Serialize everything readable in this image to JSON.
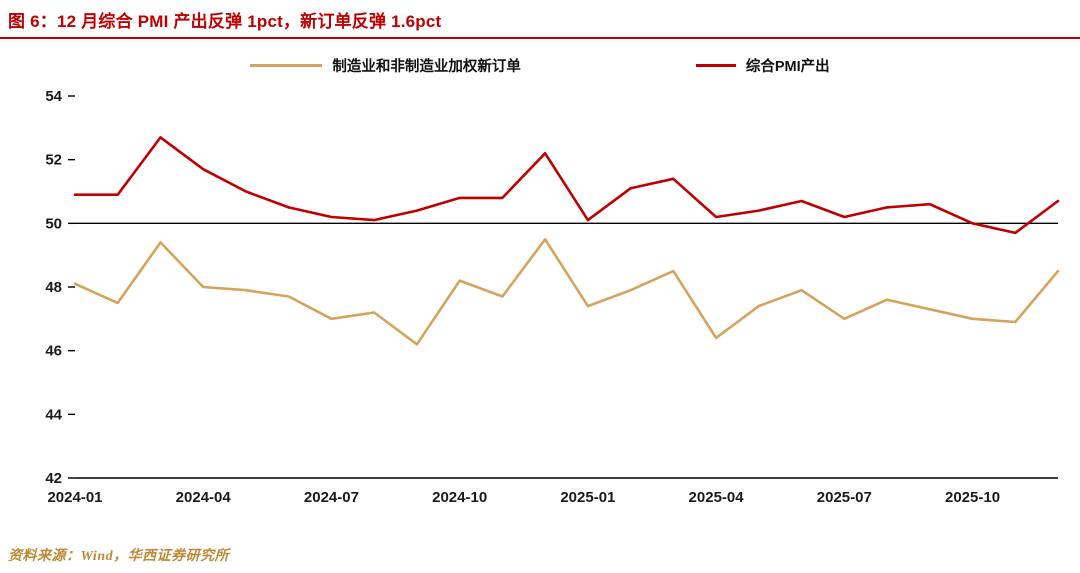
{
  "header": {
    "title": "图 6：12 月综合 PMI 产出反弹 1pct，新订单反弹 1.6pct"
  },
  "legend": {
    "items": [
      {
        "label": "制造业和非制造业加权新订单"
      },
      {
        "label": "综合PMI产出"
      }
    ]
  },
  "chart_data": {
    "type": "line",
    "title": "12 月综合 PMI 产出反弹 1pct，新订单反弹 1.6pct",
    "x": [
      "2024-01",
      "2024-02",
      "2024-03",
      "2024-04",
      "2024-05",
      "2024-06",
      "2024-07",
      "2024-08",
      "2024-09",
      "2024-10",
      "2024-11",
      "2024-12",
      "2025-01",
      "2025-02",
      "2025-03",
      "2025-04",
      "2025-05",
      "2025-06",
      "2025-07",
      "2025-08",
      "2025-09",
      "2025-10",
      "2025-11",
      "2025-12"
    ],
    "x_tick_labels": [
      "2024-01",
      "2024-04",
      "2024-07",
      "2024-10",
      "2025-01",
      "2025-04",
      "2025-07",
      "2025-10"
    ],
    "y_ticks": [
      42,
      44,
      46,
      48,
      50,
      52,
      54
    ],
    "ylim": [
      42,
      54
    ],
    "reference_line": 50,
    "grid": false,
    "legend_position": "top",
    "series": [
      {
        "name": "制造业和非制造业加权新订单",
        "color": "#D5A35E",
        "values": [
          48.1,
          47.5,
          49.4,
          48.0,
          47.9,
          47.7,
          47.0,
          47.2,
          46.2,
          48.2,
          47.7,
          49.5,
          47.4,
          47.9,
          48.5,
          46.4,
          47.4,
          47.9,
          47.0,
          47.6,
          47.3,
          47.0,
          46.9,
          48.5
        ]
      },
      {
        "name": "综合PMI产出",
        "color": "#C00000",
        "values": [
          50.9,
          50.9,
          52.7,
          51.7,
          51.0,
          50.5,
          50.2,
          50.1,
          50.4,
          50.8,
          50.8,
          52.2,
          50.1,
          51.1,
          51.4,
          50.2,
          50.4,
          50.7,
          50.2,
          50.5,
          50.6,
          50.0,
          49.7,
          50.7
        ]
      }
    ]
  },
  "footer": {
    "source": "资料来源：Wind，华西证券研究所"
  },
  "colors": {
    "accent_red": "#C00000",
    "accent_gold": "#D5A35E",
    "axis_black": "#000000"
  }
}
